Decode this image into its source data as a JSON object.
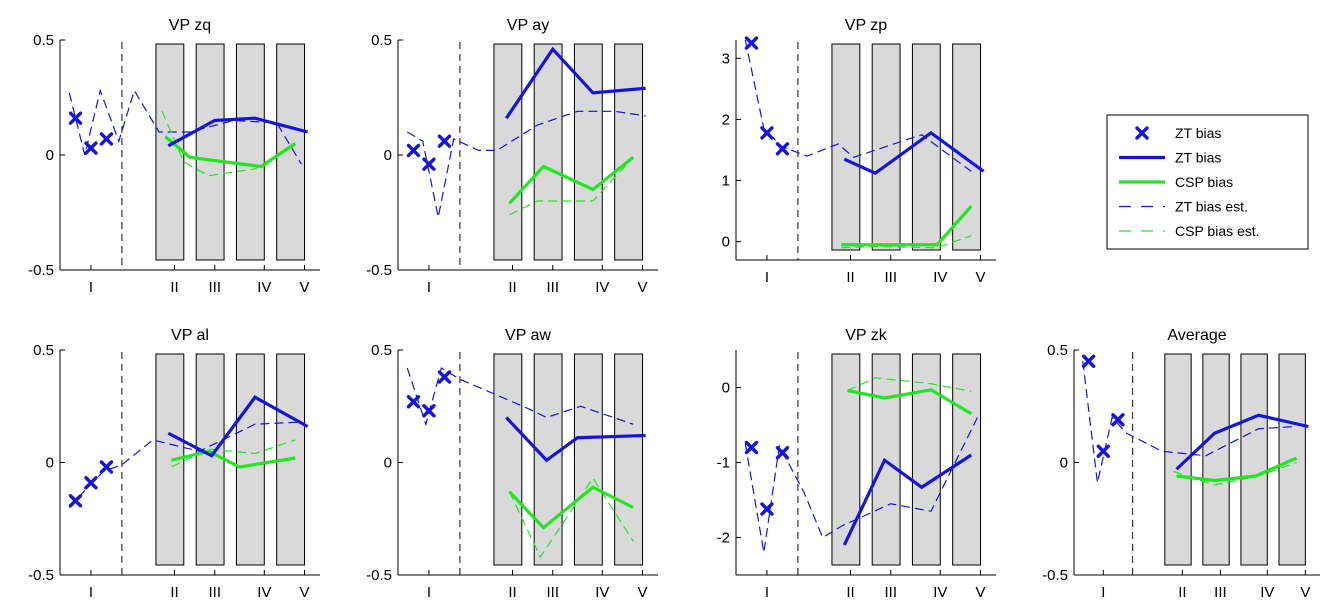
{
  "colors": {
    "zt": "#1414dc",
    "csp": "#22e622",
    "shade": "#d9d9d9",
    "divider": "#333333"
  },
  "legend": {
    "entries": [
      {
        "label": "ZT bias",
        "style": "marker"
      },
      {
        "label": "ZT bias",
        "style": "solid-blue"
      },
      {
        "label": "CSP bias",
        "style": "solid-green"
      },
      {
        "label": "ZT bias  est.",
        "style": "dashed-blue"
      },
      {
        "label": "CSP bias est.",
        "style": "dashed-green"
      }
    ]
  },
  "chart_data": [
    {
      "type": "line",
      "title": "VP zq",
      "ylim": [
        -0.5,
        0.5
      ],
      "yticks": [
        "0.5",
        "0",
        "-0.5"
      ],
      "yticks_values": [
        0.5,
        0,
        -0.5
      ],
      "xticks": [
        "I",
        "II",
        "III",
        "IV",
        "V"
      ],
      "zt_markers": [
        [
          0.5,
          0.16
        ],
        [
          1,
          0.03
        ],
        [
          1.5,
          0.07
        ]
      ],
      "zt": [
        [
          3.5,
          0.04
        ],
        [
          5,
          0.15
        ],
        [
          6.3,
          0.16
        ],
        [
          8,
          0.1
        ]
      ],
      "csp": [
        [
          3.4,
          0.08
        ],
        [
          4.2,
          -0.01
        ],
        [
          6.5,
          -0.05
        ],
        [
          7.6,
          0.05
        ]
      ],
      "zt_est": [
        [
          0.3,
          0.27
        ],
        [
          0.8,
          0.0
        ],
        [
          1.3,
          0.28
        ],
        [
          1.9,
          0.06
        ],
        [
          2.4,
          0.28
        ],
        [
          3.2,
          0.1
        ],
        [
          4.2,
          0.1
        ],
        [
          5.6,
          0.15
        ],
        [
          7.0,
          0.14
        ],
        [
          7.8,
          -0.04
        ]
      ],
      "csp_est": [
        [
          3.3,
          0.19
        ],
        [
          4.0,
          -0.03
        ],
        [
          4.8,
          -0.09
        ],
        [
          6.3,
          -0.06
        ],
        [
          7.6,
          0.05
        ]
      ]
    },
    {
      "type": "line",
      "title": "VP ay",
      "ylim": [
        -0.5,
        0.5
      ],
      "yticks": [
        "0.5",
        "0",
        "-0.5"
      ],
      "yticks_values": [
        0.5,
        0,
        -0.5
      ],
      "xticks": [
        "I",
        "II",
        "III",
        "IV",
        "V"
      ],
      "zt_markers": [
        [
          0.5,
          0.02
        ],
        [
          1,
          -0.04
        ],
        [
          1.5,
          0.06
        ]
      ],
      "zt": [
        [
          3.5,
          0.16
        ],
        [
          5,
          0.46
        ],
        [
          6.3,
          0.27
        ],
        [
          8,
          0.29
        ]
      ],
      "csp": [
        [
          3.6,
          -0.21
        ],
        [
          4.7,
          -0.05
        ],
        [
          6.3,
          -0.15
        ],
        [
          7.6,
          -0.01
        ]
      ],
      "zt_est": [
        [
          0.3,
          0.1
        ],
        [
          0.8,
          0.06
        ],
        [
          1.3,
          -0.27
        ],
        [
          1.8,
          0.07
        ],
        [
          2.6,
          0.02
        ],
        [
          3.2,
          0.02
        ],
        [
          4.5,
          0.13
        ],
        [
          5.8,
          0.19
        ],
        [
          7.0,
          0.19
        ],
        [
          8.0,
          0.17
        ]
      ],
      "csp_est": [
        [
          3.6,
          -0.26
        ],
        [
          4.5,
          -0.2
        ],
        [
          6.3,
          -0.2
        ],
        [
          7.6,
          -0.01
        ]
      ]
    },
    {
      "type": "line",
      "title": "VP zp",
      "ylim": [
        -0.3,
        3.3
      ],
      "yticks": [
        "3",
        "2",
        "1",
        "0"
      ],
      "yticks_values": [
        3,
        2,
        1,
        0
      ],
      "xticks": [
        "I",
        "II",
        "III",
        "IV",
        "V"
      ],
      "zt_markers": [
        [
          0.5,
          3.25
        ],
        [
          1,
          1.78
        ],
        [
          1.5,
          1.52
        ]
      ],
      "zt": [
        [
          3.5,
          1.35
        ],
        [
          4.5,
          1.12
        ],
        [
          6.3,
          1.78
        ],
        [
          8,
          1.15
        ]
      ],
      "csp": [
        [
          3.4,
          -0.05
        ],
        [
          4.5,
          -0.05
        ],
        [
          6.5,
          -0.05
        ],
        [
          7.6,
          0.58
        ]
      ],
      "zt_est": [
        [
          0.3,
          3.3
        ],
        [
          0.9,
          1.85
        ],
        [
          1.5,
          1.55
        ],
        [
          2.3,
          1.4
        ],
        [
          3.3,
          1.6
        ],
        [
          3.8,
          1.38
        ],
        [
          6.0,
          1.75
        ],
        [
          7.6,
          1.15
        ]
      ],
      "csp_est": [
        [
          3.4,
          -0.1
        ],
        [
          4.5,
          -0.08
        ],
        [
          6.5,
          -0.1
        ],
        [
          7.6,
          0.1
        ]
      ]
    },
    {
      "type": "line",
      "title": "VP al",
      "ylim": [
        -0.5,
        0.5
      ],
      "yticks": [
        "0.5",
        "0",
        "-0.5"
      ],
      "yticks_values": [
        0.5,
        0,
        -0.5
      ],
      "xticks": [
        "I",
        "II",
        "III",
        "IV",
        "V"
      ],
      "zt_markers": [
        [
          0.5,
          -0.17
        ],
        [
          1,
          -0.09
        ],
        [
          1.5,
          -0.02
        ]
      ],
      "zt": [
        [
          3.5,
          0.13
        ],
        [
          4.9,
          0.03
        ],
        [
          6.3,
          0.29
        ],
        [
          8,
          0.16
        ]
      ],
      "csp": [
        [
          3.6,
          0.01
        ],
        [
          4.8,
          0.05
        ],
        [
          5.8,
          -0.02
        ],
        [
          7.6,
          0.02
        ]
      ],
      "zt_est": [
        [
          0.3,
          -0.2
        ],
        [
          0.9,
          -0.11
        ],
        [
          1.4,
          -0.04
        ],
        [
          2.0,
          -0.01
        ],
        [
          3.0,
          0.1
        ],
        [
          4.5,
          0.05
        ],
        [
          6.3,
          0.17
        ],
        [
          7.8,
          0.18
        ]
      ],
      "csp_est": [
        [
          3.6,
          -0.02
        ],
        [
          4.8,
          0.06
        ],
        [
          6.3,
          0.04
        ],
        [
          7.6,
          0.1
        ]
      ]
    },
    {
      "type": "line",
      "title": "VP aw",
      "ylim": [
        -0.5,
        0.5
      ],
      "yticks": [
        "0.5",
        "0",
        "-0.5"
      ],
      "yticks_values": [
        0.5,
        0,
        -0.5
      ],
      "xticks": [
        "I",
        "II",
        "III",
        "IV",
        "V"
      ],
      "zt_markers": [
        [
          0.5,
          0.27
        ],
        [
          1,
          0.23
        ],
        [
          1.5,
          0.38
        ]
      ],
      "zt": [
        [
          3.5,
          0.2
        ],
        [
          4.8,
          0.01
        ],
        [
          5.8,
          0.11
        ],
        [
          8,
          0.12
        ]
      ],
      "csp": [
        [
          3.6,
          -0.13
        ],
        [
          4.7,
          -0.29
        ],
        [
          6.3,
          -0.11
        ],
        [
          7.6,
          -0.2
        ]
      ],
      "zt_est": [
        [
          0.3,
          0.42
        ],
        [
          0.9,
          0.17
        ],
        [
          1.4,
          0.42
        ],
        [
          2.0,
          0.37
        ],
        [
          4.2,
          0.24
        ],
        [
          4.8,
          0.2
        ],
        [
          5.9,
          0.25
        ],
        [
          7.6,
          0.17
        ]
      ],
      "csp_est": [
        [
          3.6,
          -0.13
        ],
        [
          4.6,
          -0.42
        ],
        [
          6.3,
          -0.07
        ],
        [
          7.6,
          -0.35
        ]
      ]
    },
    {
      "type": "line",
      "title": "VP zk",
      "ylim": [
        -2.5,
        0.5
      ],
      "yticks": [
        "0",
        "-1",
        "-2"
      ],
      "yticks_values": [
        0,
        -1,
        -2
      ],
      "xticks": [
        "I",
        "II",
        "III",
        "IV",
        "V"
      ],
      "zt_markers": [
        [
          0.5,
          -0.8
        ],
        [
          1,
          -1.62
        ],
        [
          1.5,
          -0.87
        ]
      ],
      "zt": [
        [
          3.5,
          -2.1
        ],
        [
          4.8,
          -0.97
        ],
        [
          6.0,
          -1.33
        ],
        [
          7.6,
          -0.9
        ]
      ],
      "csp": [
        [
          3.6,
          -0.04
        ],
        [
          4.8,
          -0.14
        ],
        [
          6.3,
          -0.03
        ],
        [
          7.6,
          -0.35
        ]
      ],
      "zt_est": [
        [
          0.3,
          -0.75
        ],
        [
          0.9,
          -2.2
        ],
        [
          1.4,
          -0.78
        ],
        [
          2.2,
          -1.4
        ],
        [
          2.8,
          -2.0
        ],
        [
          3.4,
          -1.85
        ],
        [
          5.0,
          -1.55
        ],
        [
          6.3,
          -1.65
        ],
        [
          7.8,
          -0.4
        ]
      ],
      "csp_est": [
        [
          3.6,
          -0.04
        ],
        [
          4.5,
          0.13
        ],
        [
          6.3,
          0.05
        ],
        [
          7.6,
          -0.05
        ]
      ]
    },
    {
      "type": "line",
      "title": "Average",
      "ylim": [
        -0.5,
        0.5
      ],
      "yticks": [
        "0.5",
        "0",
        "-0.5"
      ],
      "yticks_values": [
        0.5,
        0,
        -0.5
      ],
      "xticks": [
        "I",
        "II",
        "III",
        "IV",
        "V"
      ],
      "zt_markers": [
        [
          0.5,
          0.45
        ],
        [
          1,
          0.05
        ],
        [
          1.5,
          0.19
        ]
      ],
      "zt": [
        [
          3.5,
          -0.03
        ],
        [
          4.8,
          0.13
        ],
        [
          6.3,
          0.21
        ],
        [
          8,
          0.16
        ]
      ],
      "csp": [
        [
          3.5,
          -0.06
        ],
        [
          4.8,
          -0.08
        ],
        [
          6.2,
          -0.06
        ],
        [
          7.6,
          0.02
        ]
      ],
      "zt_est": [
        [
          0.3,
          0.45
        ],
        [
          0.8,
          -0.09
        ],
        [
          1.3,
          0.2
        ],
        [
          1.8,
          0.13
        ],
        [
          3.0,
          0.05
        ],
        [
          4.5,
          0.03
        ],
        [
          6.3,
          0.15
        ],
        [
          7.6,
          0.16
        ]
      ],
      "csp_est": [
        [
          3.4,
          -0.04
        ],
        [
          4.8,
          -0.1
        ],
        [
          6.3,
          -0.06
        ],
        [
          7.6,
          0.0
        ]
      ]
    }
  ]
}
